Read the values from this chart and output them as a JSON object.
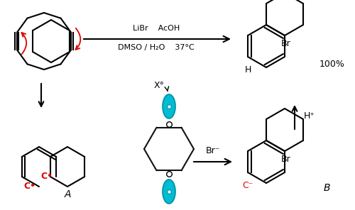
{
  "bg_color": "#ffffff",
  "black": "#000000",
  "red": "#dd0000",
  "teal": "#00bcd4",
  "teal_edge": "#008fa0",
  "reagents_line1": "LiBr    AcOH",
  "reagents_line2": "DMSO / H₂O    37°C",
  "yield_text": "100%",
  "label_A": "A",
  "label_B": "B",
  "label_Xo": "X°",
  "label_Br_minus": "Br⁻",
  "label_Hp": "H⁺",
  "label_H": "H",
  "label_Br": "Br"
}
